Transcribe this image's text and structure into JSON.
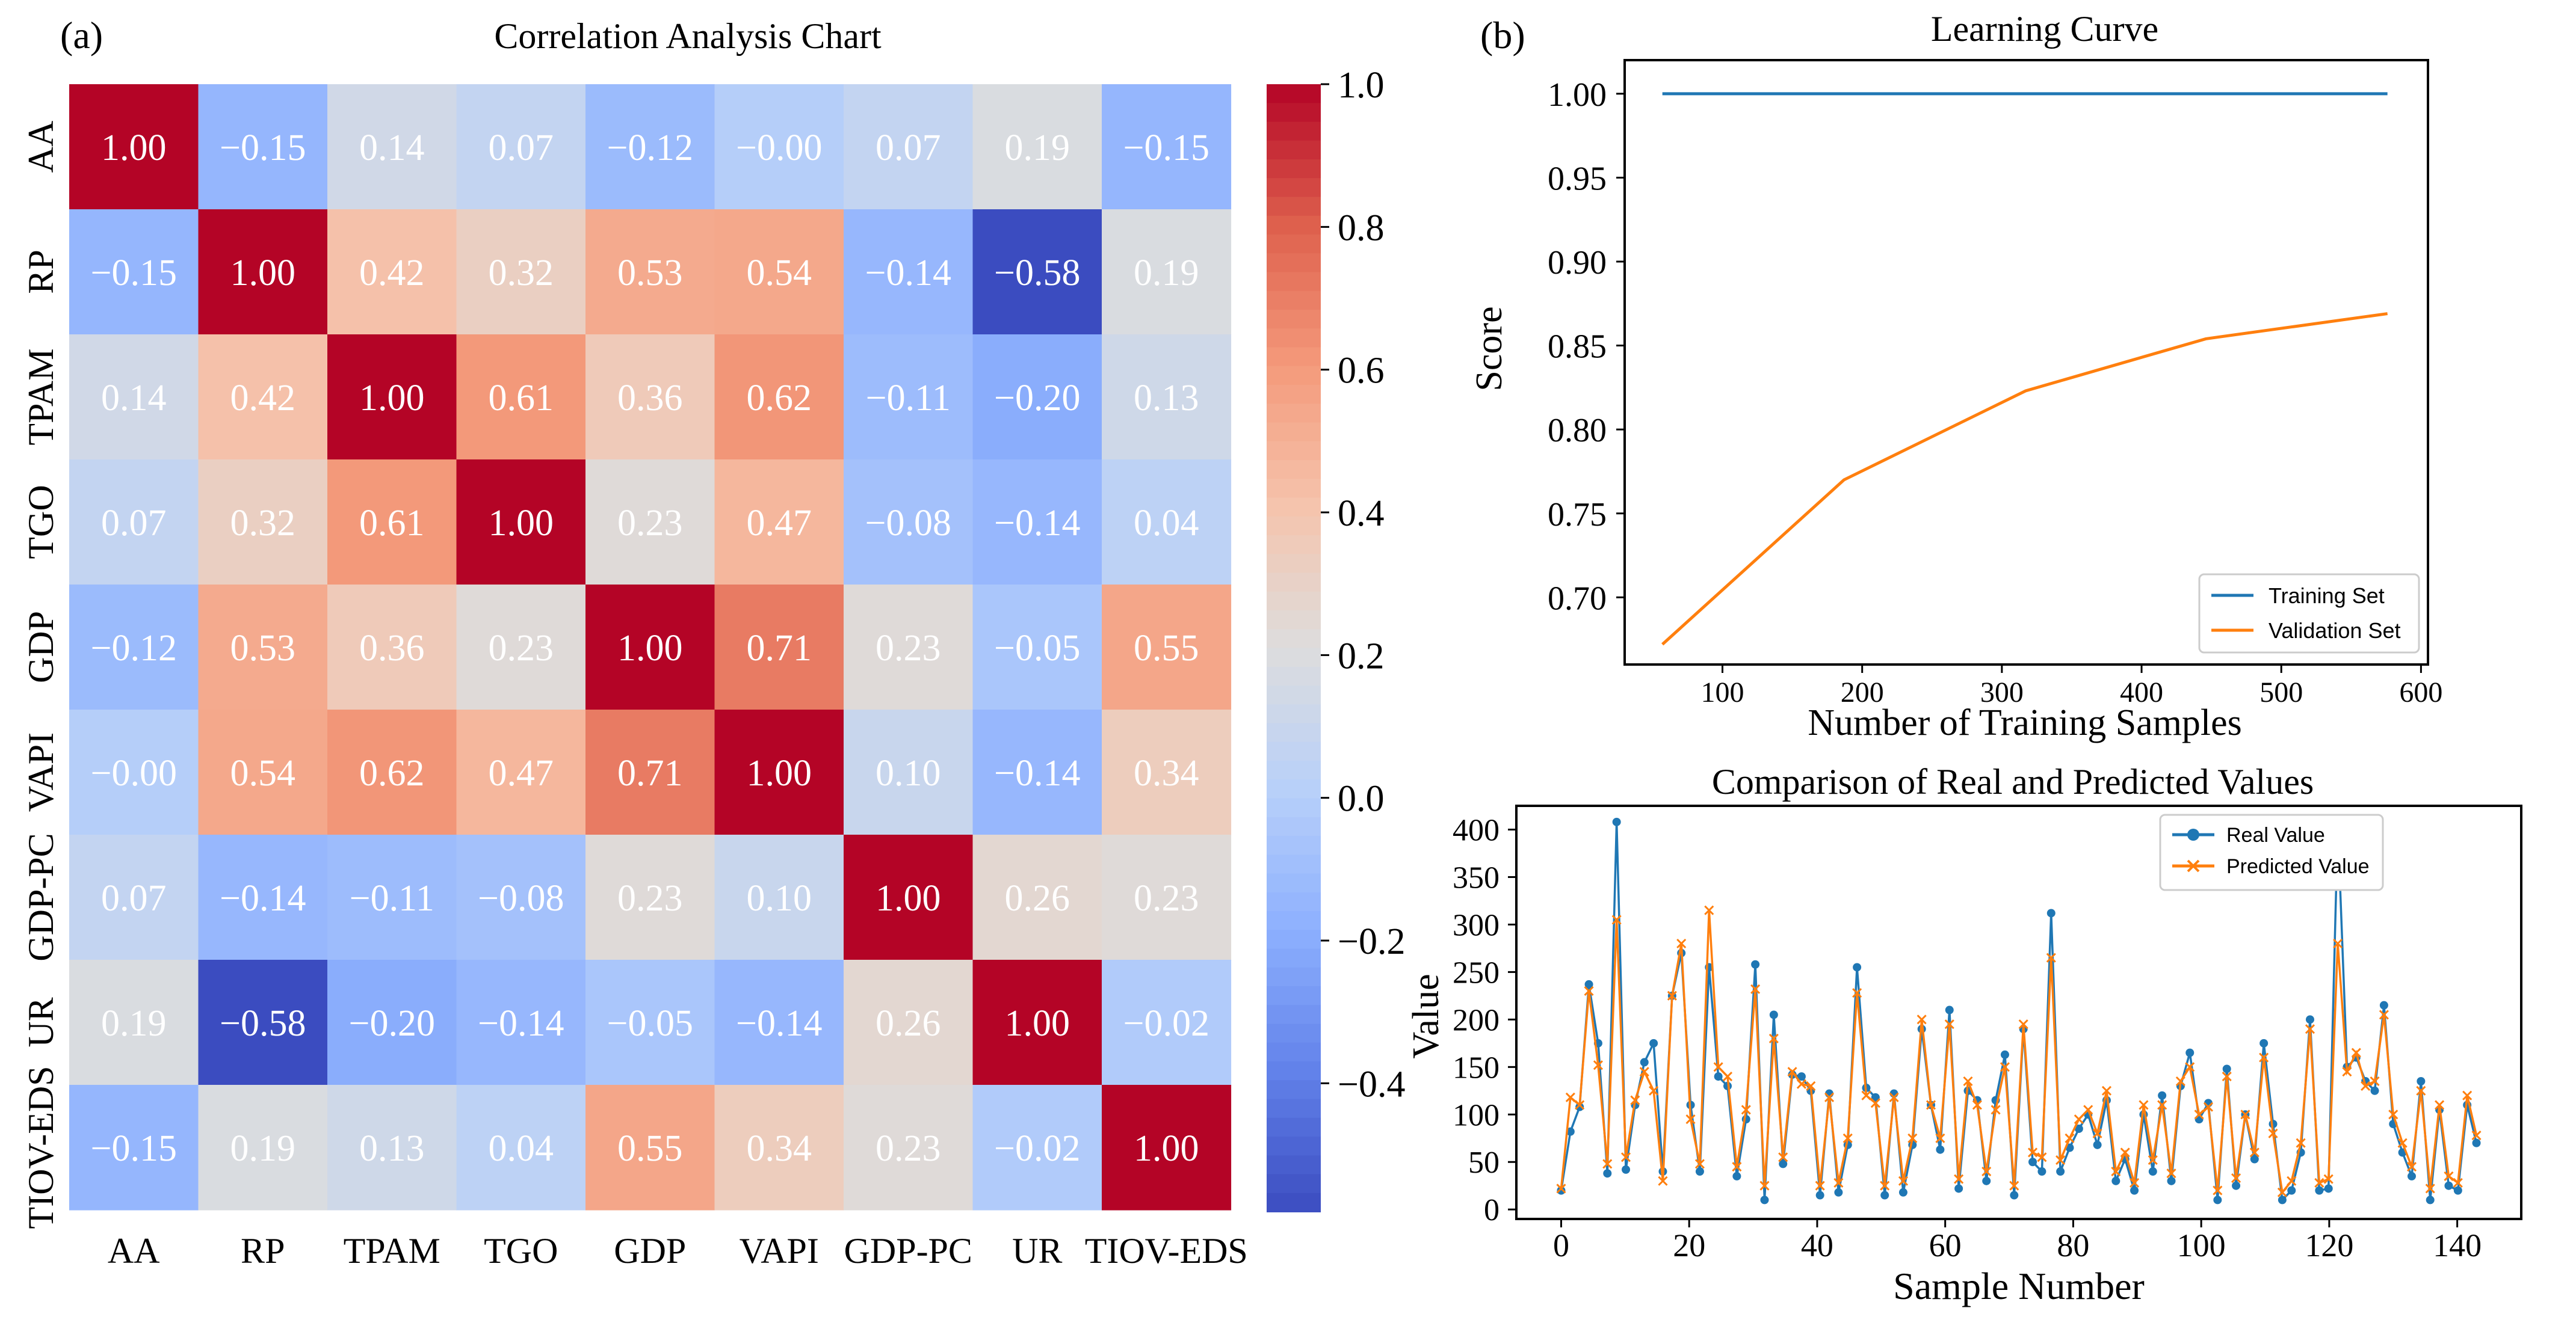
{
  "chart_data": [
    {
      "type": "heatmap",
      "panel_label": "(a)",
      "title": "Correlation Analysis Chart",
      "row_labels": [
        "AA",
        "RP",
        "TPAM",
        "TGO",
        "GDP",
        "VAPI",
        "GDP-PC",
        "UR",
        "TIOV-EDS"
      ],
      "col_labels": [
        "AA",
        "RP",
        "TPAM",
        "TGO",
        "GDP",
        "VAPI",
        "GDP-PC",
        "UR",
        "TIOV-EDS"
      ],
      "cell_labels": [
        [
          "1.00",
          "−0.15",
          "0.14",
          "0.07",
          "−0.12",
          "−0.00",
          "0.07",
          "0.19",
          "−0.15"
        ],
        [
          "−0.15",
          "1.00",
          "0.42",
          "0.32",
          "0.53",
          "0.54",
          "−0.14",
          "−0.58",
          "0.19"
        ],
        [
          "0.14",
          "0.42",
          "1.00",
          "0.61",
          "0.36",
          "0.62",
          "−0.11",
          "−0.20",
          "0.13"
        ],
        [
          "0.07",
          "0.32",
          "0.61",
          "1.00",
          "0.23",
          "0.47",
          "−0.08",
          "−0.14",
          "0.04"
        ],
        [
          "−0.12",
          "0.53",
          "0.36",
          "0.23",
          "1.00",
          "0.71",
          "0.23",
          "−0.05",
          "0.55"
        ],
        [
          "−0.00",
          "0.54",
          "0.62",
          "0.47",
          "0.71",
          "1.00",
          "0.10",
          "−0.14",
          "0.34"
        ],
        [
          "0.07",
          "−0.14",
          "−0.11",
          "−0.08",
          "0.23",
          "0.10",
          "1.00",
          "0.26",
          "0.23"
        ],
        [
          "0.19",
          "−0.58",
          "−0.20",
          "−0.14",
          "−0.05",
          "−0.14",
          "0.26",
          "1.00",
          "−0.02"
        ],
        [
          "−0.15",
          "0.19",
          "0.13",
          "0.04",
          "0.55",
          "0.34",
          "0.23",
          "−0.02",
          "1.00"
        ]
      ],
      "colorbar": {
        "colormap": "coolwarm",
        "vmin": -0.58,
        "vmax": 1.0,
        "ticks": [
          1.0,
          0.8,
          0.6,
          0.4,
          0.2,
          0.0,
          -0.2,
          -0.4
        ],
        "tick_labels": [
          "1.0",
          "0.8",
          "0.6",
          "0.4",
          "0.2",
          "0.0",
          "−0.2",
          "−0.4"
        ]
      }
    },
    {
      "type": "line",
      "panel_label": "(b)",
      "title": "Learning Curve",
      "xlabel": "Number of Training Samples",
      "ylabel": "Score",
      "xlim": [
        30,
        605
      ],
      "ylim": [
        0.66,
        1.02
      ],
      "xticks": [
        100,
        200,
        300,
        400,
        500,
        600
      ],
      "xtick_labels": [
        "100",
        "200",
        "300",
        "400",
        "500",
        "600"
      ],
      "yticks": [
        0.7,
        0.75,
        0.8,
        0.85,
        0.9,
        0.95,
        1.0
      ],
      "ytick_labels": [
        "0.70",
        "0.75",
        "0.80",
        "0.85",
        "0.90",
        "0.95",
        "1.00"
      ],
      "x": [
        57,
        187,
        317,
        446,
        576
      ],
      "series": [
        {
          "name": "Training Set",
          "color": "#1f77b4",
          "values": [
            1.0,
            1.0,
            1.0,
            1.0,
            1.0
          ]
        },
        {
          "name": "Validation Set",
          "color": "#ff7f0e",
          "values": [
            0.672,
            0.77,
            0.823,
            0.854,
            0.869
          ]
        }
      ],
      "legend_position": "lower-right"
    },
    {
      "type": "line",
      "title": "Comparison of Real and Predicted Values",
      "xlabel": "Sample Number",
      "ylabel": "Value",
      "xlim": [
        -7,
        150
      ],
      "ylim": [
        -10,
        425
      ],
      "xticks": [
        0,
        20,
        40,
        60,
        80,
        100,
        120,
        140
      ],
      "xtick_labels": [
        "0",
        "20",
        "40",
        "60",
        "80",
        "100",
        "120",
        "140"
      ],
      "yticks": [
        0,
        50,
        100,
        150,
        200,
        250,
        300,
        350,
        400
      ],
      "ytick_labels": [
        "0",
        "50",
        "100",
        "150",
        "200",
        "250",
        "300",
        "350",
        "400"
      ],
      "series": [
        {
          "name": "Real Value",
          "color": "#1f77b4",
          "marker": "circle",
          "values": [
            20,
            82,
            108,
            237,
            175,
            38,
            408,
            42,
            110,
            155,
            175,
            40,
            225,
            270,
            110,
            40,
            255,
            140,
            130,
            35,
            95,
            258,
            10,
            205,
            48,
            142,
            140,
            125,
            15,
            122,
            18,
            68,
            255,
            128,
            118,
            15,
            122,
            18,
            68,
            190,
            110,
            63,
            210,
            22,
            125,
            115,
            30,
            115,
            163,
            15,
            190,
            50,
            40,
            312,
            40,
            65,
            85,
            100,
            68,
            115,
            30,
            53,
            20,
            100,
            40,
            120,
            30,
            130,
            165,
            95,
            112,
            10,
            148,
            25,
            100,
            53,
            175,
            90,
            10,
            20,
            60,
            200,
            20,
            22,
            405,
            150,
            160,
            135,
            125,
            215,
            90,
            60,
            35,
            135,
            10,
            105,
            25,
            20,
            110,
            70
          ]
        },
        {
          "name": "Predicted Value",
          "color": "#ff7f0e",
          "marker": "x",
          "values": [
            22,
            118,
            110,
            230,
            152,
            48,
            305,
            55,
            115,
            145,
            125,
            30,
            225,
            280,
            95,
            48,
            315,
            150,
            140,
            45,
            105,
            232,
            25,
            180,
            55,
            145,
            132,
            130,
            25,
            118,
            28,
            75,
            228,
            120,
            112,
            25,
            118,
            30,
            75,
            200,
            110,
            75,
            195,
            32,
            135,
            110,
            40,
            105,
            150,
            25,
            195,
            60,
            55,
            265,
            52,
            75,
            95,
            105,
            80,
            125,
            40,
            60,
            28,
            110,
            52,
            110,
            38,
            135,
            150,
            100,
            108,
            20,
            140,
            33,
            100,
            60,
            160,
            80,
            18,
            30,
            70,
            190,
            28,
            32,
            280,
            145,
            165,
            130,
            135,
            205,
            100,
            70,
            45,
            125,
            22,
            110,
            35,
            28,
            120,
            78
          ]
        }
      ],
      "legend_position": "top-right"
    }
  ]
}
